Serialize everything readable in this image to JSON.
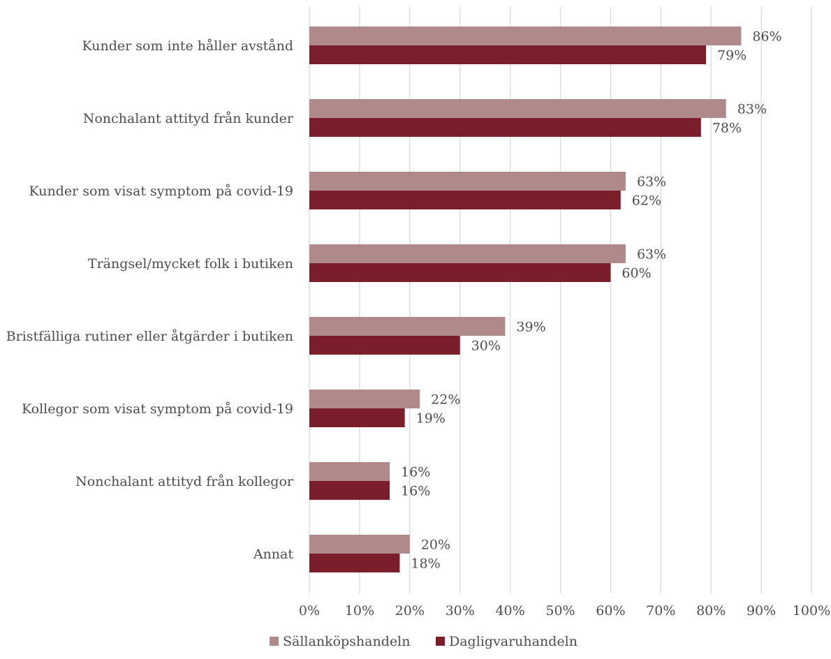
{
  "chart_data": {
    "type": "bar",
    "orientation": "horizontal",
    "title": "",
    "xlabel": "",
    "ylabel": "",
    "xlim": [
      0,
      100
    ],
    "x_ticks": [
      0,
      10,
      20,
      30,
      40,
      50,
      60,
      70,
      80,
      90,
      100
    ],
    "tick_suffix": "%",
    "grid": "vertical",
    "legend_position": "bottom",
    "categories": [
      "Kunder som inte håller avstånd",
      "Nonchalant attityd från kunder",
      "Kunder som visat symptom på covid-19",
      "Trängsel/mycket folk i butiken",
      "Bristfälliga rutiner eller åtgärder i butiken",
      "Kollegor som visat symptom på covid-19",
      "Nonchalant attityd från kollegor",
      "Annat"
    ],
    "series": [
      {
        "name": "Sällanköpshandeln",
        "color": "#b08a8a",
        "values": [
          86,
          83,
          63,
          63,
          39,
          22,
          16,
          20
        ]
      },
      {
        "name": "Dagligvaruhandeln",
        "color": "#7b1e2c",
        "values": [
          79,
          78,
          62,
          60,
          30,
          19,
          16,
          18
        ]
      }
    ]
  }
}
